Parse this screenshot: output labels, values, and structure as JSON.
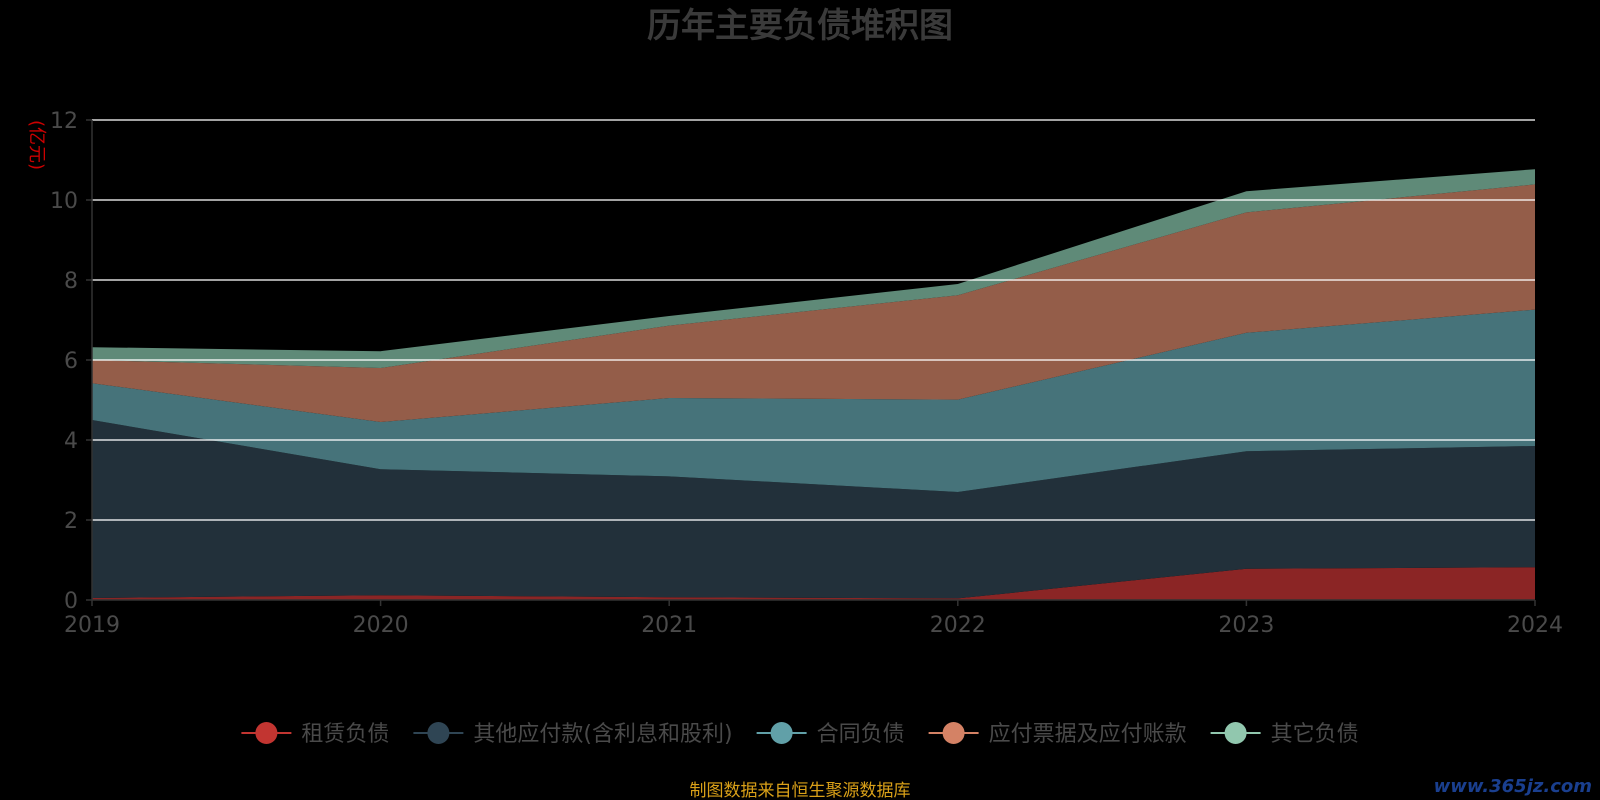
{
  "chart_data": {
    "type": "area",
    "stacked": true,
    "title": "历年主要负债堆积图",
    "ylabel": "(亿元)",
    "xlabel": "",
    "x": [
      "2019",
      "2020",
      "2021",
      "2022",
      "2023",
      "2024"
    ],
    "ylim": [
      0,
      12
    ],
    "yticks": [
      0,
      2,
      4,
      6,
      8,
      10,
      12
    ],
    "grid": true,
    "legend_position": "bottom",
    "series": [
      {
        "name": "租赁负债",
        "values": [
          0.05,
          0.12,
          0.07,
          0.04,
          0.78,
          0.82
        ]
      },
      {
        "name": "其他应付款(含利息和股利)",
        "values": [
          4.45,
          3.15,
          3.02,
          2.66,
          2.94,
          3.03
        ]
      },
      {
        "name": "合同负债",
        "values": [
          0.92,
          1.18,
          1.96,
          2.31,
          2.96,
          3.41
        ]
      },
      {
        "name": "应付票据及应付账款",
        "values": [
          0.58,
          1.35,
          1.81,
          2.61,
          3.01,
          3.13
        ]
      },
      {
        "name": "其它负债",
        "values": [
          0.32,
          0.42,
          0.24,
          0.28,
          0.53,
          0.38
        ]
      }
    ],
    "source_note": "制图数据来自恒生聚源数据库",
    "watermark": "www.365jz.com"
  },
  "colors": {
    "series_fill": [
      "#8b2525",
      "#22303a",
      "#46737a",
      "#945d49",
      "#5f8a78"
    ],
    "legend_marker": [
      "#c23531",
      "#2f4554",
      "#61a0a8",
      "#d48265",
      "#91c7ae"
    ],
    "title": "#3a3a3a",
    "axis_text": "#4a4a4a",
    "ylabel": "#cc0000",
    "grid": "#ffffff",
    "source": "#d9a018",
    "watermark": "#1a3f8f"
  }
}
